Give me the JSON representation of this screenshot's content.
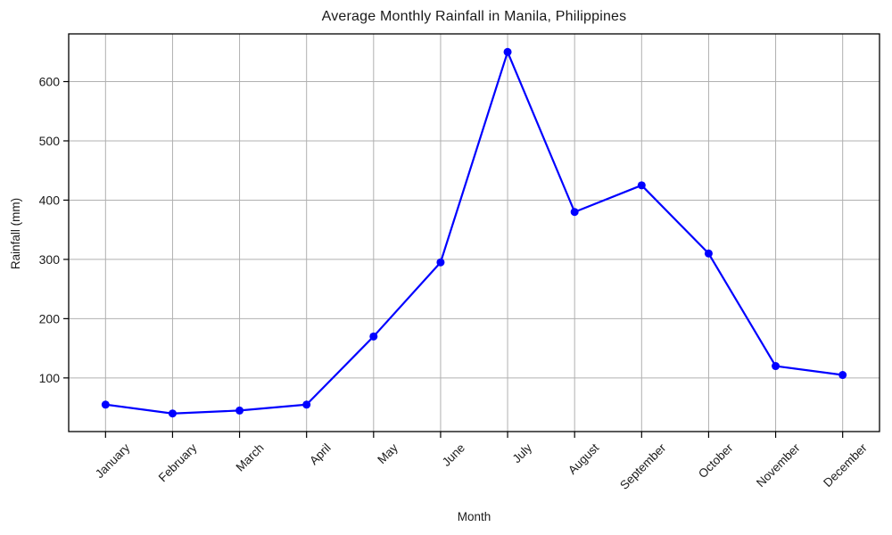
{
  "chart_data": {
    "type": "line",
    "title": "Average Monthly Rainfall in Manila, Philippines",
    "xlabel": "Month",
    "ylabel": "Rainfall (mm)",
    "categories": [
      "January",
      "February",
      "March",
      "April",
      "May",
      "June",
      "July",
      "August",
      "September",
      "October",
      "November",
      "December"
    ],
    "series": [
      {
        "name": "Average Monthly Rainfall",
        "values": [
          55,
          40,
          45,
          55,
          170,
          295,
          650,
          380,
          425,
          310,
          120,
          105
        ]
      }
    ],
    "yticks": [
      100,
      200,
      300,
      400,
      500,
      600
    ],
    "ylim": [
      9.5,
      680.5
    ],
    "x_margin": 0.55,
    "grid": true,
    "legend_position": "none",
    "xtick_rotation_deg": 45,
    "colors": {
      "line": "#0000ff",
      "marker": "#0000ff",
      "grid": "#b0b0b0",
      "spine": "#000000",
      "text": "#1a1a1a",
      "background": "#ffffff"
    }
  }
}
